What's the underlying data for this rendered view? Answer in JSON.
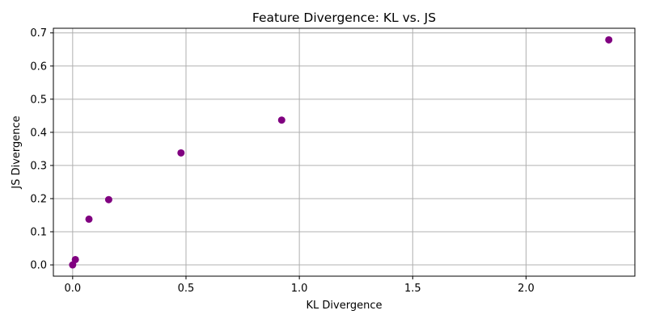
{
  "chart_data": {
    "type": "scatter",
    "title": "Feature Divergence: KL vs. JS",
    "xlabel": "KL Divergence",
    "ylabel": "JS Divergence",
    "xlim": [
      -0.085,
      2.48
    ],
    "ylim": [
      -0.034,
      0.714
    ],
    "xticks": [
      0.0,
      0.5,
      1.0,
      1.5,
      2.0
    ],
    "yticks": [
      0.0,
      0.1,
      0.2,
      0.3,
      0.4,
      0.5,
      0.6,
      0.7
    ],
    "xtick_labels": [
      "0.0",
      "0.5",
      "1.0",
      "1.5",
      "2.0"
    ],
    "ytick_labels": [
      "0.0",
      "0.1",
      "0.2",
      "0.3",
      "0.4",
      "0.5",
      "0.6",
      "0.7"
    ],
    "grid": true,
    "marker_color": "#800080",
    "points": [
      {
        "x": 0.0,
        "y": 0.0
      },
      {
        "x": 0.012,
        "y": 0.016
      },
      {
        "x": 0.072,
        "y": 0.138
      },
      {
        "x": 0.159,
        "y": 0.197
      },
      {
        "x": 0.478,
        "y": 0.338
      },
      {
        "x": 0.922,
        "y": 0.437
      },
      {
        "x": 2.365,
        "y": 0.679
      }
    ]
  }
}
